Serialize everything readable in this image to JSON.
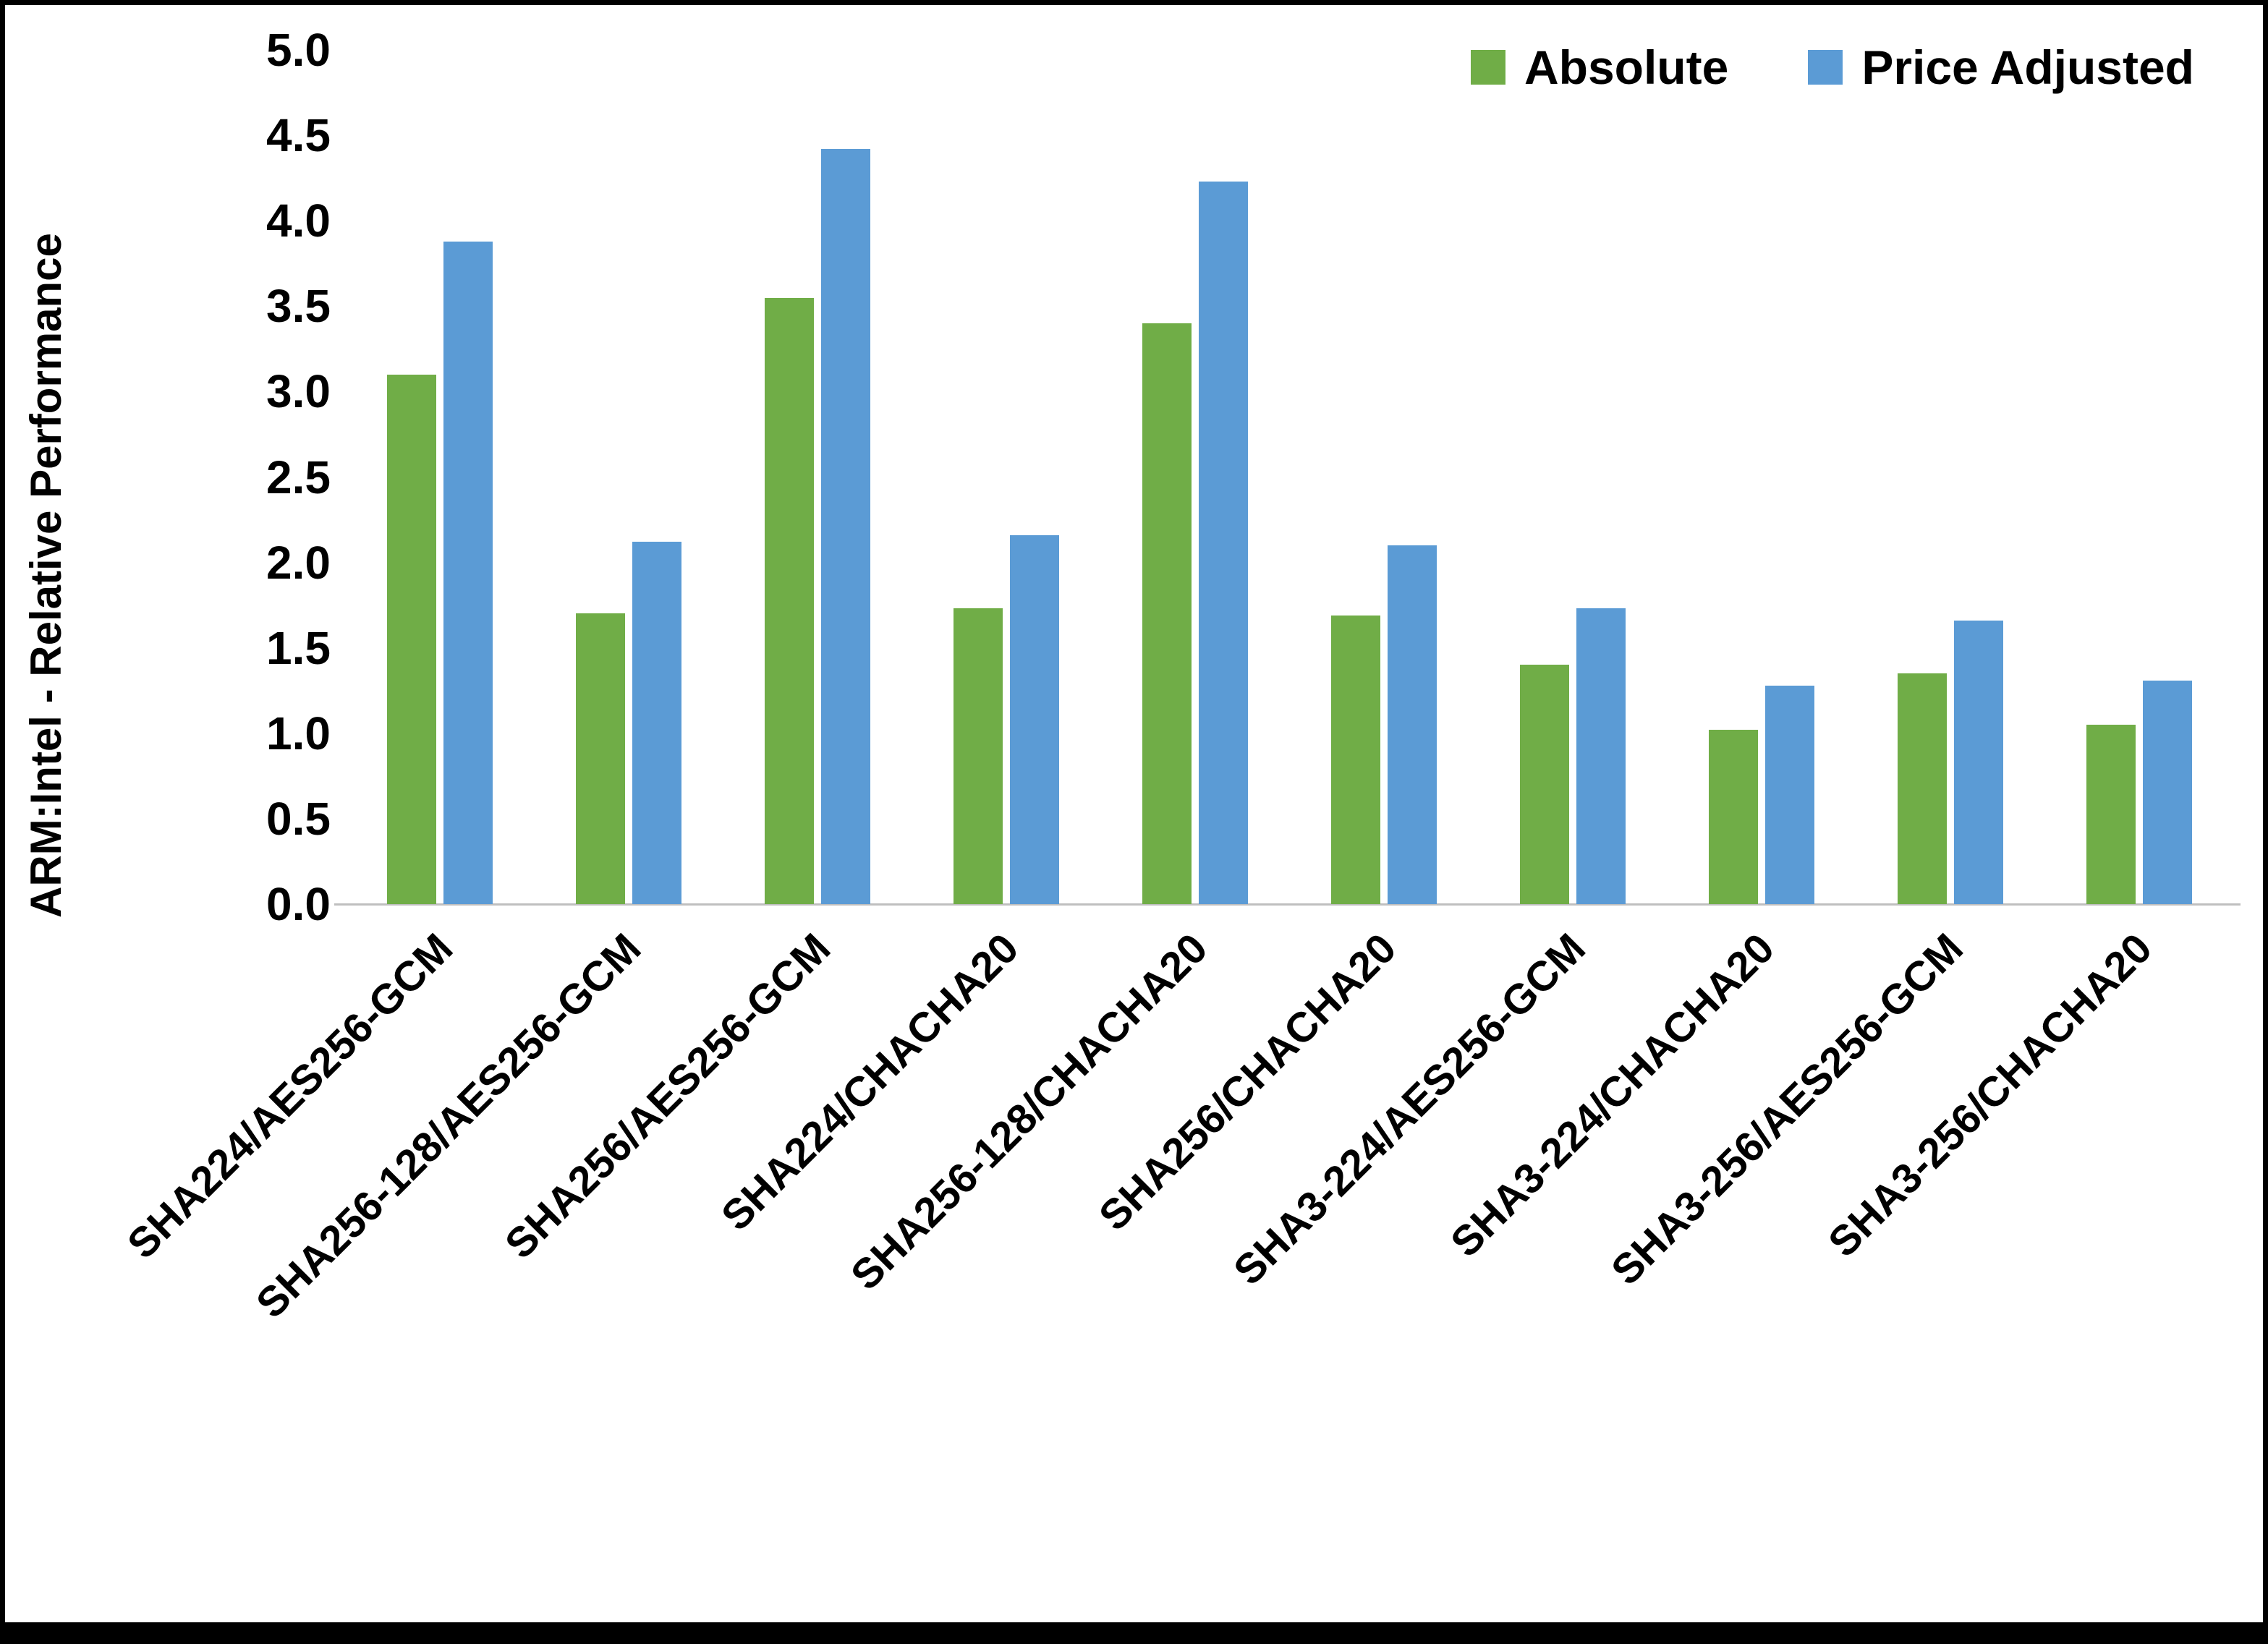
{
  "chart_data": {
    "type": "bar",
    "title": "",
    "xlabel": "",
    "ylabel": "ARM:Intel - Relative Performance",
    "ylim": [
      0,
      5
    ],
    "ytick_step": 0.5,
    "grid": false,
    "legend_position": "top-right",
    "categories": [
      "SHA224/AES256-GCM",
      "SHA256-128/AES256-GCM",
      "SHA256/AES256-GCM",
      "SHA224/CHACHA20",
      "SHA256-128/CHACHA20",
      "SHA256/CHACHA20",
      "SHA3-224/AES256-GCM",
      "SHA3-224/CHACHA20",
      "SHA3-256/AES256-GCM",
      "SHA3-256/CHACHA20"
    ],
    "series": [
      {
        "name": "Absolute",
        "color": "#70AD47",
        "values": [
          3.1,
          1.7,
          3.55,
          1.73,
          3.4,
          1.69,
          1.4,
          1.02,
          1.35,
          1.05
        ]
      },
      {
        "name": "Price Adjusted",
        "color": "#5B9BD5",
        "values": [
          3.88,
          2.12,
          4.42,
          2.16,
          4.23,
          2.1,
          1.73,
          1.28,
          1.66,
          1.31
        ]
      }
    ]
  }
}
